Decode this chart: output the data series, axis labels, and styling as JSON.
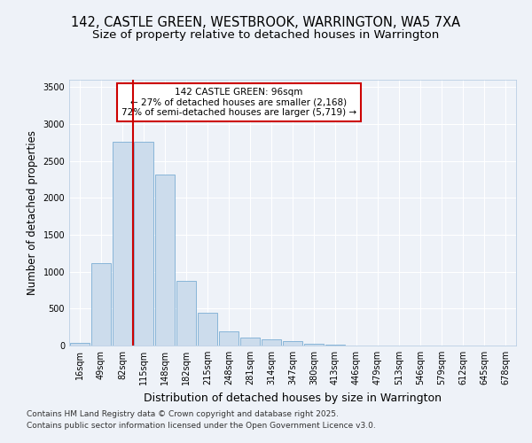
{
  "title_line1": "142, CASTLE GREEN, WESTBROOK, WARRINGTON, WA5 7XA",
  "title_line2": "Size of property relative to detached houses in Warrington",
  "xlabel": "Distribution of detached houses by size in Warrington",
  "ylabel": "Number of detached properties",
  "categories": [
    "16sqm",
    "49sqm",
    "82sqm",
    "115sqm",
    "148sqm",
    "182sqm",
    "215sqm",
    "248sqm",
    "281sqm",
    "314sqm",
    "347sqm",
    "380sqm",
    "413sqm",
    "446sqm",
    "479sqm",
    "513sqm",
    "546sqm",
    "579sqm",
    "612sqm",
    "645sqm",
    "678sqm"
  ],
  "values": [
    40,
    1120,
    2760,
    2760,
    2320,
    880,
    440,
    190,
    105,
    90,
    55,
    30,
    14,
    5,
    2,
    1,
    0,
    0,
    0,
    0,
    0
  ],
  "bar_color": "#ccdcec",
  "bar_edge_color": "#7aadd4",
  "vline_color": "#cc0000",
  "vline_x": 2.5,
  "annotation_box_text": "142 CASTLE GREEN: 96sqm\n← 27% of detached houses are smaller (2,168)\n72% of semi-detached houses are larger (5,719) →",
  "annotation_box_fc": "white",
  "annotation_box_ec": "#cc0000",
  "ylim": [
    0,
    3600
  ],
  "yticks": [
    0,
    500,
    1000,
    1500,
    2000,
    2500,
    3000,
    3500
  ],
  "footer_line1": "Contains HM Land Registry data © Crown copyright and database right 2025.",
  "footer_line2": "Contains public sector information licensed under the Open Government Licence v3.0.",
  "bg_color": "#eef2f8",
  "grid_color": "#ffffff",
  "title_fontsize": 10.5,
  "subtitle_fontsize": 9.5,
  "ylabel_fontsize": 8.5,
  "xlabel_fontsize": 9,
  "tick_fontsize": 7,
  "annot_fontsize": 7.5,
  "footer_fontsize": 6.5
}
